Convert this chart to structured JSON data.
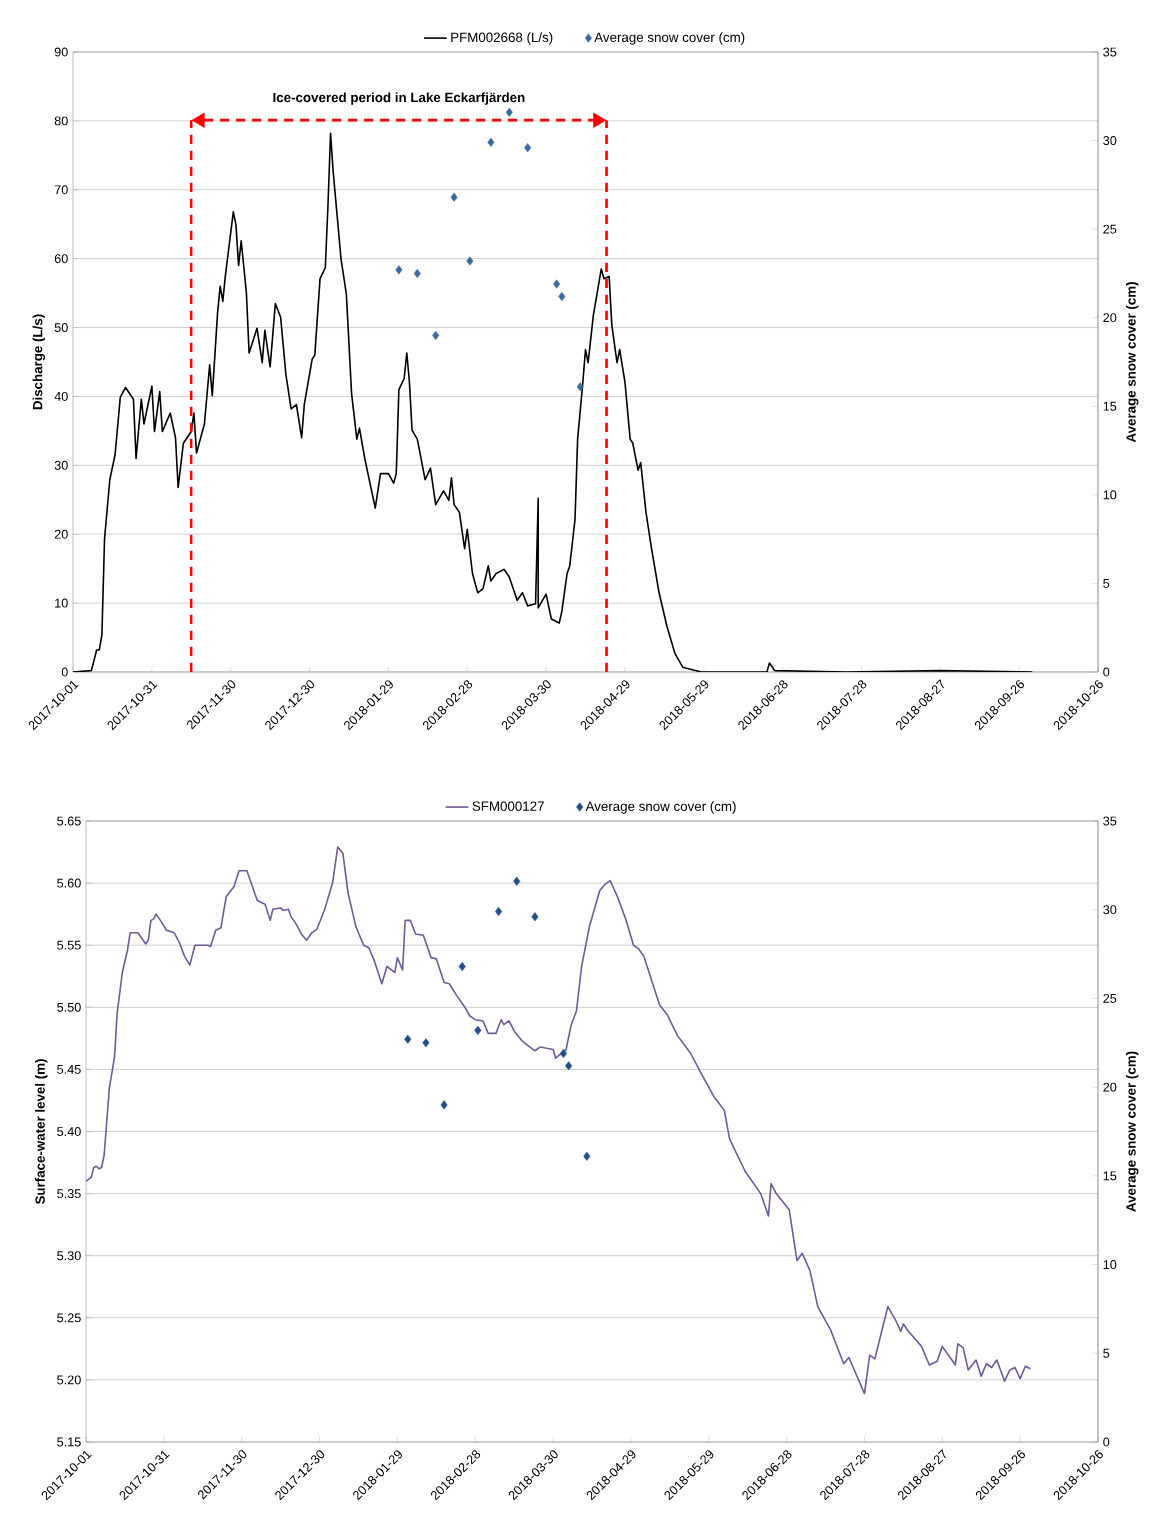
{
  "chart_data": [
    {
      "type": "line",
      "ylabel": "Discharge (L/s)",
      "y2label": "Average snow cover (cm)",
      "xlim": [
        "2017-10-01",
        "2018-10-26"
      ],
      "xticks": [
        "2017-10-01",
        "2017-10-31",
        "2017-11-30",
        "2017-12-30",
        "2018-01-29",
        "2018-02-28",
        "2018-03-30",
        "2018-04-29",
        "2018-05-29",
        "2018-06-28",
        "2018-07-28",
        "2018-08-27",
        "2018-09-26",
        "2018-10-26"
      ],
      "ylim": [
        0,
        90
      ],
      "yticks": [
        0,
        10,
        20,
        30,
        40,
        50,
        60,
        70,
        80,
        90
      ],
      "y2lim": [
        0,
        35
      ],
      "y2ticks": [
        0,
        5,
        10,
        15,
        20,
        25,
        30,
        35
      ],
      "grid": "y",
      "legend": "top",
      "ref_lines": [
        {
          "axis": "x",
          "value": "2017-11-15",
          "color": "#ff0000",
          "line_style": "dashed"
        },
        {
          "axis": "x",
          "value": "2018-04-22",
          "color": "#ff0000",
          "line_style": "dashed"
        }
      ],
      "annotations": [
        "Ice-covered period in Lake Eckarfjärden"
      ],
      "series": [
        {
          "name": "PFM002668 (L/s)",
          "color": "#000000",
          "marker": "none",
          "x": [
            "2017-10-01",
            "2017-10-08",
            "2017-10-10",
            "2017-10-11",
            "2017-10-12",
            "2017-10-13",
            "2017-10-15",
            "2017-10-17",
            "2017-10-19",
            "2017-10-21",
            "2017-10-24",
            "2017-10-25",
            "2017-10-27",
            "2017-10-28",
            "2017-10-31",
            "2017-11-01",
            "2017-11-03",
            "2017-11-04",
            "2017-11-07",
            "2017-11-09",
            "2017-11-10",
            "2017-11-12",
            "2017-11-15",
            "2017-11-16",
            "2017-11-17",
            "2017-11-20",
            "2017-11-22",
            "2017-11-23",
            "2017-11-25",
            "2017-11-26",
            "2017-11-27",
            "2017-11-28",
            "2017-12-01",
            "2017-12-02",
            "2017-12-03",
            "2017-12-04",
            "2017-12-06",
            "2017-12-07",
            "2017-12-10",
            "2017-12-12",
            "2017-12-13",
            "2017-12-15",
            "2017-12-17",
            "2017-12-19",
            "2017-12-21",
            "2017-12-23",
            "2017-12-25",
            "2017-12-27",
            "2017-12-28",
            "2017-12-31",
            "2018-01-01",
            "2018-01-03",
            "2018-01-05",
            "2018-01-06",
            "2018-01-07",
            "2018-01-08",
            "2018-01-11",
            "2018-01-13",
            "2018-01-15",
            "2018-01-17",
            "2018-01-18",
            "2018-01-20",
            "2018-01-24",
            "2018-01-26",
            "2018-01-29",
            "2018-01-31",
            "2018-02-01",
            "2018-02-02",
            "2018-02-04",
            "2018-02-05",
            "2018-02-06",
            "2018-02-07",
            "2018-02-09",
            "2018-02-12",
            "2018-02-14",
            "2018-02-16",
            "2018-02-19",
            "2018-02-21",
            "2018-02-22",
            "2018-02-23",
            "2018-02-25",
            "2018-02-27",
            "2018-02-28",
            "2018-03-02",
            "2018-03-04",
            "2018-03-06",
            "2018-03-08",
            "2018-03-09",
            "2018-03-11",
            "2018-03-14",
            "2018-03-16",
            "2018-03-19",
            "2018-03-21",
            "2018-03-23",
            "2018-03-26",
            "2018-03-27",
            "2018-03-27",
            "2018-03-30",
            "2018-04-01",
            "2018-04-04",
            "2018-04-05",
            "2018-04-07",
            "2018-04-08",
            "2018-04-10",
            "2018-04-11",
            "2018-04-12",
            "2018-04-13",
            "2018-04-14",
            "2018-04-15",
            "2018-04-17",
            "2018-04-20",
            "2018-04-21",
            "2018-04-23",
            "2018-04-24",
            "2018-04-26",
            "2018-04-27",
            "2018-04-29",
            "2018-05-01",
            "2018-05-02",
            "2018-05-04",
            "2018-05-05",
            "2018-05-07",
            "2018-05-09",
            "2018-05-12",
            "2018-05-15",
            "2018-05-18",
            "2018-05-21",
            "2018-05-28",
            "2018-06-22",
            "2018-06-23",
            "2018-06-25",
            "2018-07-22",
            "2018-08-27",
            "2018-10-01"
          ],
          "values": [
            0,
            0.2,
            3.2,
            3.2,
            5.4,
            19.3,
            27.9,
            31.5,
            39.9,
            41.3,
            39.6,
            31,
            39.6,
            36,
            41.5,
            34.9,
            40.7,
            34.9,
            37.6,
            34,
            26.8,
            33.2,
            34.9,
            37.6,
            31.8,
            36,
            44.6,
            40.1,
            52.1,
            56,
            53.8,
            57.6,
            66.8,
            64.9,
            59,
            62.6,
            54.9,
            46.3,
            49.9,
            44.9,
            49.6,
            44.3,
            53.5,
            51.5,
            43.2,
            38.2,
            38.8,
            34,
            38.8,
            45.4,
            46,
            57.1,
            58.7,
            67.6,
            78.2,
            72.6,
            59.9,
            54.9,
            40.4,
            33.8,
            35.4,
            31,
            23.8,
            28.8,
            28.8,
            27.4,
            28.8,
            41,
            42.6,
            46.3,
            42.1,
            35.1,
            33.8,
            27.9,
            29.6,
            24.3,
            26.3,
            24.9,
            28.2,
            24.3,
            23.2,
            17.9,
            20.7,
            14.3,
            11.5,
            12.1,
            15.4,
            13.2,
            14.3,
            14.9,
            13.8,
            10.4,
            11.5,
            9.6,
            9.9,
            25.2,
            9.3,
            11.3,
            7.7,
            7.1,
            8.8,
            14.3,
            15.4,
            22.1,
            33.8,
            37.9,
            42.1,
            46.8,
            44.9,
            51.8,
            58.5,
            57.1,
            57.4,
            50.4,
            44.9,
            46.8,
            42.1,
            33.8,
            33.2,
            29.3,
            30.4,
            23.2,
            18.2,
            11.5,
            6.6,
            2.7,
            0.7,
            0,
            0,
            1.3,
            0.2,
            0,
            0.2,
            0
          ]
        },
        {
          "type": "scatter",
          "name": "Average snow cover (cm)",
          "color": "#3b6aa0",
          "marker": "diamond",
          "axis": "y2",
          "x": [
            "2018-02-02",
            "2018-02-09",
            "2018-02-16",
            "2018-02-23",
            "2018-03-01",
            "2018-03-09",
            "2018-03-16",
            "2018-03-23",
            "2018-04-03",
            "2018-04-05",
            "2018-04-12"
          ],
          "values": [
            22.7,
            22.5,
            19.0,
            26.8,
            23.2,
            29.9,
            31.6,
            29.6,
            21.9,
            21.2,
            16.1
          ]
        }
      ]
    },
    {
      "type": "line",
      "ylabel": "Surface-water level (m)",
      "y2label": "Average snow cover (cm)",
      "xlim": [
        "2017-10-01",
        "2018-10-26"
      ],
      "xticks": [
        "2017-10-01",
        "2017-10-31",
        "2017-11-30",
        "2017-12-30",
        "2018-01-29",
        "2018-02-28",
        "2018-03-30",
        "2018-04-29",
        "2018-05-29",
        "2018-06-28",
        "2018-07-28",
        "2018-08-27",
        "2018-09-26",
        "2018-10-26"
      ],
      "ylim": [
        5.15,
        5.65
      ],
      "yticks": [
        {
          "value": 5.15,
          "label": "5.15"
        },
        {
          "value": 5.2,
          "label": "5.20"
        },
        {
          "value": 5.25,
          "label": "5.25"
        },
        {
          "value": 5.3,
          "label": "5.30"
        },
        {
          "value": 5.35,
          "label": "5.35"
        },
        {
          "value": 5.4,
          "label": "5.40"
        },
        {
          "value": 5.45,
          "label": "5.45"
        },
        {
          "value": 5.5,
          "label": "5.50"
        },
        {
          "value": 5.55,
          "label": "5.55"
        },
        {
          "value": 5.6,
          "label": "5.60"
        },
        {
          "value": 5.65,
          "label": "5.65"
        }
      ],
      "y2lim": [
        0,
        35
      ],
      "y2ticks": [
        0,
        5,
        10,
        15,
        20,
        25,
        30,
        35
      ],
      "grid": "y",
      "legend": "top",
      "series": [
        {
          "name": "SFM000127",
          "color": "#6f5a96",
          "marker": "none",
          "x": [
            "2017-10-01",
            "2017-10-03",
            "2017-10-04",
            "2017-10-05",
            "2017-10-06",
            "2017-10-07",
            "2017-10-08",
            "2017-10-10",
            "2017-10-12",
            "2017-10-13",
            "2017-10-15",
            "2017-10-17",
            "2017-10-18",
            "2017-10-21",
            "2017-10-22",
            "2017-10-24",
            "2017-10-25",
            "2017-10-26",
            "2017-10-27",
            "2017-10-28",
            "2017-10-30",
            "2017-11-01",
            "2017-11-04",
            "2017-11-06",
            "2017-11-08",
            "2017-11-10",
            "2017-11-12",
            "2017-11-17",
            "2017-11-18",
            "2017-11-20",
            "2017-11-22",
            "2017-11-24",
            "2017-11-27",
            "2017-11-29",
            "2017-12-02",
            "2017-12-04",
            "2017-12-06",
            "2017-12-09",
            "2017-12-11",
            "2017-12-12",
            "2017-12-15",
            "2017-12-16",
            "2017-12-18",
            "2017-12-19",
            "2017-12-21",
            "2017-12-23",
            "2017-12-25",
            "2017-12-27",
            "2017-12-29",
            "2018-01-01",
            "2018-01-04",
            "2018-01-06",
            "2018-01-08",
            "2018-01-10",
            "2018-01-13",
            "2018-01-16",
            "2018-01-18",
            "2018-01-20",
            "2018-01-23",
            "2018-01-25",
            "2018-01-28",
            "2018-01-29",
            "2018-01-31",
            "2018-02-01",
            "2018-02-03",
            "2018-02-05",
            "2018-02-08",
            "2018-02-11",
            "2018-02-13",
            "2018-02-16",
            "2018-02-18",
            "2018-02-21",
            "2018-02-24",
            "2018-02-26",
            "2018-02-28",
            "2018-03-03",
            "2018-03-05",
            "2018-03-08",
            "2018-03-10",
            "2018-03-11",
            "2018-03-13",
            "2018-03-15",
            "2018-03-18",
            "2018-03-23",
            "2018-03-25",
            "2018-03-30",
            "2018-03-31",
            "2018-04-04",
            "2018-04-06",
            "2018-04-08",
            "2018-04-10",
            "2018-04-13",
            "2018-04-17",
            "2018-04-19",
            "2018-04-21",
            "2018-04-24",
            "2018-04-27",
            "2018-04-30",
            "2018-05-02",
            "2018-05-04",
            "2018-05-10",
            "2018-05-13",
            "2018-05-17",
            "2018-05-22",
            "2018-05-26",
            "2018-05-31",
            "2018-06-04",
            "2018-06-06",
            "2018-06-12",
            "2018-06-18",
            "2018-06-21",
            "2018-06-22",
            "2018-06-24",
            "2018-06-29",
            "2018-07-02",
            "2018-07-04",
            "2018-07-07",
            "2018-07-10",
            "2018-07-15",
            "2018-07-20",
            "2018-07-22",
            "2018-07-28",
            "2018-07-30",
            "2018-08-01",
            "2018-08-06",
            "2018-08-09",
            "2018-08-11",
            "2018-08-12",
            "2018-08-14",
            "2018-08-19",
            "2018-08-22",
            "2018-08-25",
            "2018-08-27",
            "2018-08-30",
            "2018-09-01",
            "2018-09-02",
            "2018-09-04",
            "2018-09-06",
            "2018-09-09",
            "2018-09-11",
            "2018-09-13",
            "2018-09-15",
            "2018-09-17",
            "2018-09-20",
            "2018-09-22",
            "2018-09-24",
            "2018-09-26",
            "2018-09-28",
            "2018-09-30"
          ],
          "values": [
            5.36,
            5.363,
            5.371,
            5.372,
            5.37,
            5.371,
            5.381,
            5.435,
            5.46,
            5.495,
            5.528,
            5.546,
            5.56,
            5.56,
            5.557,
            5.551,
            5.554,
            5.57,
            5.571,
            5.575,
            5.569,
            5.562,
            5.56,
            5.552,
            5.541,
            5.534,
            5.55,
            5.55,
            5.549,
            5.562,
            5.564,
            5.589,
            5.597,
            5.61,
            5.61,
            5.598,
            5.586,
            5.583,
            5.57,
            5.579,
            5.58,
            5.578,
            5.579,
            5.573,
            5.567,
            5.559,
            5.554,
            5.56,
            5.563,
            5.579,
            5.6,
            5.629,
            5.624,
            5.592,
            5.565,
            5.55,
            5.548,
            5.538,
            5.519,
            5.533,
            5.528,
            5.54,
            5.53,
            5.57,
            5.57,
            5.559,
            5.558,
            5.54,
            5.539,
            5.52,
            5.519,
            5.509,
            5.5,
            5.493,
            5.49,
            5.489,
            5.479,
            5.479,
            5.49,
            5.486,
            5.489,
            5.481,
            5.473,
            5.465,
            5.468,
            5.466,
            5.459,
            5.466,
            5.486,
            5.497,
            5.533,
            5.565,
            5.594,
            5.599,
            5.602,
            5.588,
            5.571,
            5.55,
            5.547,
            5.541,
            5.502,
            5.494,
            5.477,
            5.463,
            5.447,
            5.428,
            5.417,
            5.394,
            5.368,
            5.35,
            5.332,
            5.358,
            5.35,
            5.337,
            5.296,
            5.302,
            5.288,
            5.259,
            5.24,
            5.213,
            5.218,
            5.189,
            5.22,
            5.217,
            5.259,
            5.248,
            5.239,
            5.245,
            5.239,
            5.227,
            5.212,
            5.215,
            5.227,
            5.218,
            5.212,
            5.229,
            5.226,
            5.208,
            5.216,
            5.203,
            5.213,
            5.21,
            5.216,
            5.199,
            5.208,
            5.21,
            5.201,
            5.211,
            5.209
          ]
        },
        {
          "type": "scatter",
          "name": "Average snow cover (cm)",
          "color": "#1f4e89",
          "marker": "diamond",
          "axis": "y2",
          "x": [
            "2018-02-02",
            "2018-02-09",
            "2018-02-16",
            "2018-02-23",
            "2018-03-01",
            "2018-03-09",
            "2018-03-16",
            "2018-03-23",
            "2018-04-03",
            "2018-04-05",
            "2018-04-12"
          ],
          "values": [
            22.7,
            22.5,
            19.0,
            26.8,
            23.2,
            29.9,
            31.6,
            29.6,
            21.9,
            21.2,
            16.1
          ]
        }
      ]
    }
  ]
}
